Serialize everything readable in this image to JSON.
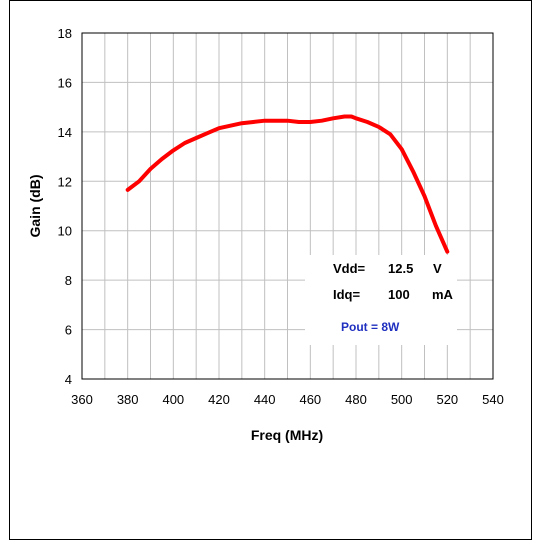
{
  "chart_data": {
    "type": "line",
    "title": "",
    "xlabel": "Freq (MHz)",
    "ylabel": "Gain (dB)",
    "xlim": [
      360,
      540
    ],
    "ylim": [
      4,
      18
    ],
    "x_ticks": [
      "360",
      "380",
      "400",
      "420",
      "440",
      "460",
      "480",
      "500",
      "520",
      "540"
    ],
    "y_ticks": [
      "4",
      "6",
      "8",
      "10",
      "12",
      "14",
      "16",
      "18"
    ],
    "grid": true,
    "series": [
      {
        "color": "#ff0000",
        "x": [
          380,
          385,
          390,
          395,
          400,
          405,
          410,
          415,
          420,
          425,
          430,
          435,
          440,
          445,
          450,
          455,
          460,
          465,
          470,
          475,
          478,
          480,
          485,
          490,
          495,
          500,
          505,
          510,
          515,
          520
        ],
        "y": [
          11.65,
          12.0,
          12.5,
          12.9,
          13.25,
          13.55,
          13.75,
          13.95,
          14.15,
          14.25,
          14.35,
          14.4,
          14.45,
          14.45,
          14.45,
          14.4,
          14.4,
          14.45,
          14.55,
          14.62,
          14.62,
          14.55,
          14.4,
          14.2,
          13.9,
          13.3,
          12.4,
          11.4,
          10.2,
          9.15
        ]
      }
    ],
    "annotations": {
      "vdd_label": "Vdd=",
      "vdd_value": "12.5",
      "vdd_unit": "V",
      "idq_label": "Idq=",
      "idq_value": "100",
      "idq_unit": "mA",
      "pout": "Pout = 8W"
    }
  }
}
